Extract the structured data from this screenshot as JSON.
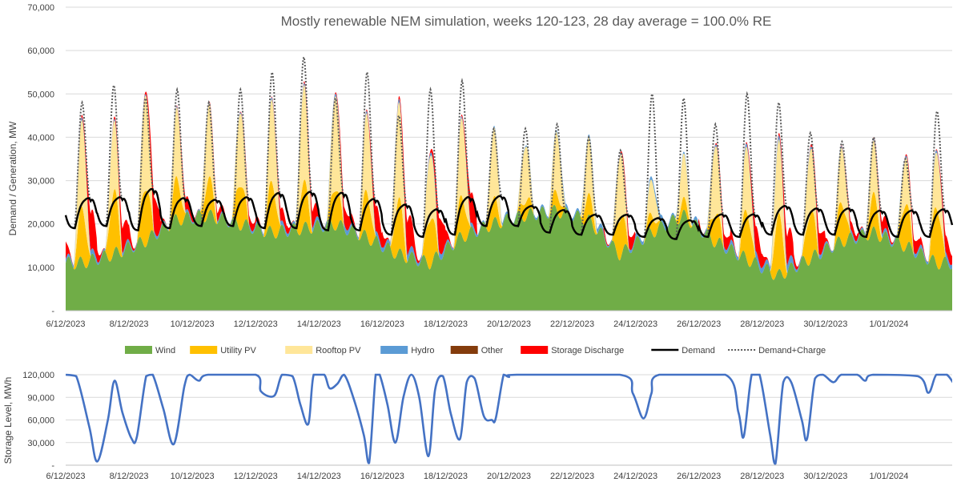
{
  "chart_data": [
    {
      "type": "area",
      "title": "Mostly renewable NEM simulation, weeks 120-123, 28 day average = 100.0% RE",
      "xlabel": "",
      "ylabel": "Demand / Generation, MW",
      "xlim": [
        "2023-12-06",
        "2024-01-03"
      ],
      "ylim": [
        0,
        70000
      ],
      "y_ticks": [
        "-",
        "10,000",
        "20,000",
        "30,000",
        "40,000",
        "50,000",
        "60,000",
        "70,000"
      ],
      "x_ticks": [
        "6/12/2023",
        "8/12/2023",
        "10/12/2023",
        "12/12/2023",
        "14/12/2023",
        "16/12/2023",
        "18/12/2023",
        "20/12/2023",
        "22/12/2023",
        "24/12/2023",
        "26/12/2023",
        "28/12/2023",
        "30/12/2023",
        "1/01/2024"
      ],
      "grid": "horizontal",
      "legend_position": "bottom",
      "stacked": true,
      "days": [
        "2023-12-06",
        "2023-12-07",
        "2023-12-08",
        "2023-12-09",
        "2023-12-10",
        "2023-12-11",
        "2023-12-12",
        "2023-12-13",
        "2023-12-14",
        "2023-12-15",
        "2023-12-16",
        "2023-12-17",
        "2023-12-18",
        "2023-12-19",
        "2023-12-20",
        "2023-12-21",
        "2023-12-22",
        "2023-12-23",
        "2023-12-24",
        "2023-12-25",
        "2023-12-26",
        "2023-12-27",
        "2023-12-28",
        "2023-12-29",
        "2023-12-30",
        "2023-12-31",
        "2024-01-01",
        "2024-01-02"
      ],
      "series": [
        {
          "name": "Wind",
          "color": "#70AD47",
          "daily_mean_mw": [
            11000,
            13000,
            16000,
            21000,
            22000,
            20000,
            18000,
            19000,
            20000,
            17000,
            13000,
            11000,
            17000,
            20000,
            22000,
            23000,
            21000,
            13000,
            18000,
            22000,
            16000,
            12000,
            8000,
            12000,
            16000,
            18000,
            15000,
            11000
          ]
        },
        {
          "name": "Utility PV",
          "color": "#FFC000",
          "daily_peak_mw": [
            12000,
            14000,
            13000,
            9000,
            8000,
            10000,
            11000,
            10000,
            9000,
            10000,
            12000,
            11000,
            9000,
            5000,
            4000,
            4000,
            5000,
            9000,
            4000,
            3000,
            7000,
            11000,
            13000,
            11000,
            9000,
            8000,
            10000,
            13000
          ]
        },
        {
          "name": "Rooftop PV",
          "color": "#FFE699",
          "daily_peak_mw": [
            20000,
            16000,
            22000,
            16000,
            17000,
            17000,
            19000,
            22000,
            22000,
            18000,
            22000,
            15000,
            18000,
            16000,
            13000,
            14000,
            13000,
            15000,
            8000,
            10000,
            16000,
            15000,
            17000,
            15000,
            13000,
            12000,
            11000,
            13000
          ]
        },
        {
          "name": "Hydro",
          "color": "#5B9BD5",
          "daily_peak_mw": [
            1200,
            800,
            700,
            600,
            500,
            600,
            1000,
            1000,
            1200,
            1100,
            1500,
            1300,
            900,
            600,
            500,
            800,
            1000,
            700,
            1500,
            800,
            900,
            1500,
            1800,
            1000,
            700,
            800,
            900,
            1200
          ]
        },
        {
          "name": "Other",
          "color": "#843C0C",
          "daily_peak_mw": [
            0,
            0,
            0,
            0,
            0,
            0,
            0,
            0,
            0,
            0,
            0,
            0,
            0,
            0,
            0,
            0,
            0,
            0,
            0,
            0,
            0,
            0,
            0,
            0,
            0,
            0,
            0,
            0
          ]
        },
        {
          "name": "Storage Discharge",
          "color": "#FF0000",
          "daily_peak_mw": [
            9000,
            6000,
            8000,
            3000,
            2000,
            2000,
            3000,
            4000,
            4000,
            6000,
            8000,
            8000,
            7000,
            0,
            0,
            0,
            0,
            3000,
            0,
            0,
            3000,
            6000,
            7000,
            5000,
            2000,
            3000,
            3000,
            4000
          ]
        },
        {
          "name": "Demand",
          "color": "#000000",
          "line": "solid",
          "daily_peak_mw": [
            31000,
            31000,
            35000,
            31000,
            30000,
            31000,
            33000,
            33500,
            33500,
            31000,
            29500,
            28000,
            32500,
            31500,
            27500,
            27000,
            25500,
            25500,
            24500,
            24000,
            26000,
            26000,
            29000,
            28000,
            28000,
            27500,
            27500,
            28000
          ],
          "daily_min_mw": [
            19000,
            19500,
            18500,
            19000,
            19500,
            19500,
            19000,
            19000,
            18500,
            18500,
            17500,
            17000,
            17500,
            19500,
            19500,
            18000,
            17500,
            17500,
            17000,
            16500,
            17000,
            17000,
            17500,
            17500,
            17500,
            17000,
            17000,
            17000
          ]
        },
        {
          "name": "Demand+Charge",
          "color": "#595959",
          "line": "dotted",
          "daily_peak_mw": [
            48000,
            52000,
            49000,
            51000,
            48000,
            51000,
            55000,
            58500,
            49000,
            55000,
            45000,
            51000,
            53000,
            42000,
            42000,
            43000,
            40000,
            37000,
            50000,
            49000,
            43000,
            50000,
            48000,
            41000,
            39000,
            40000,
            35000,
            46000
          ]
        }
      ]
    },
    {
      "type": "line",
      "title": "",
      "xlabel": "",
      "ylabel": "Storage Level, MWh",
      "xlim": [
        "2023-12-06",
        "2024-01-03"
      ],
      "ylim": [
        0,
        120000
      ],
      "y_ticks": [
        "-",
        "30,000",
        "60,000",
        "90,000",
        "120,000"
      ],
      "x_ticks": [
        "6/12/2023",
        "8/12/2023",
        "10/12/2023",
        "12/12/2023",
        "14/12/2023",
        "16/12/2023",
        "18/12/2023",
        "20/12/2023",
        "22/12/2023",
        "24/12/2023",
        "26/12/2023",
        "28/12/2023",
        "30/12/2023",
        "1/01/2024"
      ],
      "grid": "horizontal",
      "series": [
        {
          "name": "Storage Level",
          "color": "#4472C4",
          "points": [
            [
              "2023-12-06T00:00",
              120000
            ],
            [
              "2023-12-06T08:00",
              118000
            ],
            [
              "2023-12-06T18:00",
              50000
            ],
            [
              "2023-12-07T00:00",
              5000
            ],
            [
              "2023-12-07T08:00",
              60000
            ],
            [
              "2023-12-07T13:00",
              112000
            ],
            [
              "2023-12-07T19:00",
              70000
            ],
            [
              "2023-12-08T02:00",
              35000
            ],
            [
              "2023-12-08T06:00",
              38000
            ],
            [
              "2023-12-08T13:00",
              118000
            ],
            [
              "2023-12-08T18:00",
              120000
            ],
            [
              "2023-12-09T02:00",
              75000
            ],
            [
              "2023-12-09T10:00",
              28000
            ],
            [
              "2023-12-09T18:00",
              105000
            ],
            [
              "2023-12-09T22:00",
              120000
            ],
            [
              "2023-12-10T05:00",
              112000
            ],
            [
              "2023-12-10T12:00",
              120000
            ],
            [
              "2023-12-12T00:00",
              120000
            ],
            [
              "2023-12-12T04:00",
              98000
            ],
            [
              "2023-12-12T14:00",
              92000
            ],
            [
              "2023-12-12T20:00",
              120000
            ],
            [
              "2023-12-13T04:00",
              118000
            ],
            [
              "2023-12-13T10:00",
              80000
            ],
            [
              "2023-12-13T16:00",
              55000
            ],
            [
              "2023-12-13T20:00",
              120000
            ],
            [
              "2023-12-14T04:00",
              120000
            ],
            [
              "2023-12-14T08:00",
              102000
            ],
            [
              "2023-12-14T14:00",
              108000
            ],
            [
              "2023-12-14T19:00",
              120000
            ],
            [
              "2023-12-15T02:00",
              90000
            ],
            [
              "2023-12-15T10:00",
              40000
            ],
            [
              "2023-12-15T14:00",
              3000
            ],
            [
              "2023-12-15T19:00",
              120000
            ],
            [
              "2023-12-15T22:00",
              120000
            ],
            [
              "2023-12-16T04:00",
              80000
            ],
            [
              "2023-12-16T10:00",
              30000
            ],
            [
              "2023-12-16T16:00",
              90000
            ],
            [
              "2023-12-16T22:00",
              120000
            ],
            [
              "2023-12-17T04:00",
              90000
            ],
            [
              "2023-12-17T11:00",
              12000
            ],
            [
              "2023-12-17T16:00",
              100000
            ],
            [
              "2023-12-17T22:00",
              118000
            ],
            [
              "2023-12-18T04:00",
              68000
            ],
            [
              "2023-12-18T11:00",
              35000
            ],
            [
              "2023-12-18T16:00",
              110000
            ],
            [
              "2023-12-18T22:00",
              115000
            ],
            [
              "2023-12-19T05:00",
              65000
            ],
            [
              "2023-12-19T11:00",
              60000
            ],
            [
              "2023-12-19T14:00",
              62000
            ],
            [
              "2023-12-19T20:00",
              120000
            ],
            [
              "2023-12-20T00:00",
              117000
            ],
            [
              "2023-12-20T06:00",
              120000
            ],
            [
              "2023-12-23T12:00",
              120000
            ],
            [
              "2023-12-23T22:00",
              95000
            ],
            [
              "2023-12-24T06:00",
              62000
            ],
            [
              "2023-12-24T12:00",
              95000
            ],
            [
              "2023-12-24T18:00",
              120000
            ],
            [
              "2023-12-26T20:00",
              120000
            ],
            [
              "2023-12-27T06:00",
              70000
            ],
            [
              "2023-12-27T10:00",
              38000
            ],
            [
              "2023-12-27T16:00",
              120000
            ],
            [
              "2023-12-27T22:00",
              120000
            ],
            [
              "2023-12-28T06:00",
              40000
            ],
            [
              "2023-12-28T10:00",
              2000
            ],
            [
              "2023-12-28T16:00",
              110000
            ],
            [
              "2023-12-28T22:00",
              110000
            ],
            [
              "2023-12-29T06:00",
              60000
            ],
            [
              "2023-12-29T10:00",
              35000
            ],
            [
              "2023-12-29T16:00",
              115000
            ],
            [
              "2023-12-29T22:00",
              120000
            ],
            [
              "2023-12-30T06:00",
              110000
            ],
            [
              "2023-12-30T12:00",
              120000
            ],
            [
              "2023-12-31T00:00",
              120000
            ],
            [
              "2023-12-31T06:00",
              112000
            ],
            [
              "2023-12-31T12:00",
              120000
            ],
            [
              "2024-01-01T22:00",
              118000
            ],
            [
              "2024-01-02T06:00",
              96000
            ],
            [
              "2024-01-02T12:00",
              120000
            ],
            [
              "2024-01-02T20:00",
              120000
            ],
            [
              "2024-01-03T04:00",
              100000
            ],
            [
              "2024-01-03T10:00",
              80000
            ],
            [
              "2024-01-03T16:00",
              65000
            ],
            [
              "2024-01-03T20:00",
              72000
            ],
            [
              "2024-01-04T00:00",
              105000
            ]
          ]
        }
      ]
    }
  ]
}
